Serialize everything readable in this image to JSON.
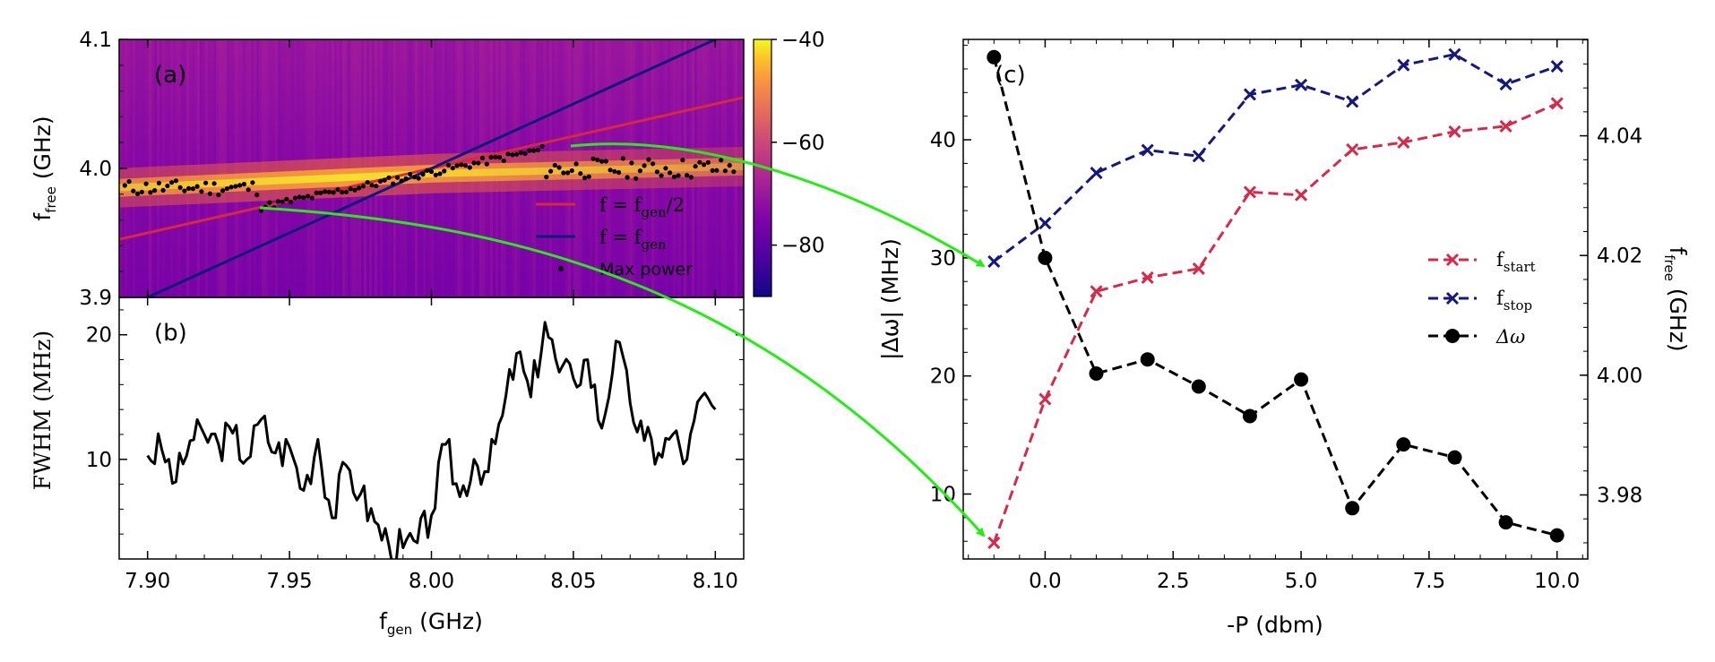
{
  "chart_data": [
    {
      "panel": "(a)",
      "type": "heatmap",
      "xlabel": "f_gen (GHz)",
      "ylabel": "f_free (GHz)",
      "xlim": [
        7.89,
        8.11
      ],
      "ylim": [
        3.9,
        4.1
      ],
      "yticks": [
        3.9,
        4.0,
        4.1
      ],
      "ytick_labels": [
        "3.9",
        "4.0",
        "4.1"
      ],
      "colorbar": {
        "ticks": [
          -40,
          -60,
          -80
        ],
        "tick_labels": [
          "−40",
          "−60",
          "−80"
        ],
        "range": [
          -90,
          -40
        ]
      },
      "series": [
        {
          "name": "f = f_gen/2",
          "color": "#d62a3c",
          "x": [
            7.89,
            8.11
          ],
          "y": [
            3.945,
            4.055
          ]
        },
        {
          "name": "f = f_gen",
          "color": "#0d1a7a",
          "x": [
            7.89,
            8.11
          ],
          "y": [
            3.89,
            4.11
          ]
        },
        {
          "name": "Max power",
          "color": "#000000",
          "type": "scatter"
        }
      ],
      "legend": [
        {
          "label": "f = f",
          "sub": "gen",
          "suffix": "/2"
        },
        {
          "label": "f = f",
          "sub": "gen",
          "suffix": ""
        },
        {
          "label": "Max power"
        }
      ]
    },
    {
      "panel": "(b)",
      "type": "line",
      "xlabel": "f_gen (GHz)",
      "ylabel": "FWHM (MHz)",
      "xlim": [
        7.89,
        8.11
      ],
      "ylim": [
        2,
        23
      ],
      "xticks": [
        7.9,
        7.95,
        8.0,
        8.05,
        8.1
      ],
      "xtick_labels": [
        "7.90",
        "7.95",
        "8.00",
        "8.05",
        "8.10"
      ],
      "yticks": [
        10,
        20
      ],
      "ytick_labels": [
        "10",
        "20"
      ],
      "series": [
        {
          "name": "FWHM",
          "x": [
            7.9,
            7.905,
            7.91,
            7.915,
            7.92,
            7.925,
            7.93,
            7.935,
            7.94,
            7.945,
            7.95,
            7.955,
            7.96,
            7.965,
            7.97,
            7.975,
            7.98,
            7.985,
            7.99,
            7.995,
            8.0,
            8.005,
            8.01,
            8.015,
            8.02,
            8.025,
            8.03,
            8.035,
            8.04,
            8.045,
            8.05,
            8.055,
            8.06,
            8.065,
            8.07,
            8.075,
            8.08,
            8.085,
            8.09,
            8.095,
            8.1
          ],
          "y": [
            10.3,
            10.8,
            8.2,
            11.5,
            12.0,
            11.2,
            12.1,
            10.0,
            13.2,
            10.5,
            11.0,
            7.5,
            11.6,
            5.3,
            9.5,
            7.2,
            5.0,
            3.1,
            2.9,
            3.3,
            5.5,
            11.2,
            7.0,
            10.0,
            9.0,
            13.5,
            18.5,
            15.0,
            21.0,
            17.0,
            16.5,
            18.0,
            12.5,
            19.5,
            14.5,
            11.5,
            10.5,
            12.0,
            10.0,
            15.0,
            14.0
          ]
        }
      ]
    },
    {
      "panel": "(c)",
      "type": "line",
      "xlabel": "-P (dbm)",
      "ylabel": "|Δω| (MHz)",
      "y2label": "f_free (GHz)",
      "xlim": [
        -1.6,
        10.6
      ],
      "ylim": [
        4.5,
        48.5
      ],
      "y2lim": [
        3.9693,
        4.0561
      ],
      "xticks": [
        0.0,
        2.5,
        5.0,
        7.5,
        10.0
      ],
      "xtick_labels": [
        "0.0",
        "2.5",
        "5.0",
        "7.5",
        "10.0"
      ],
      "yticks": [
        10,
        20,
        30,
        40
      ],
      "ytick_labels": [
        "10",
        "20",
        "30",
        "40"
      ],
      "y2ticks": [
        3.98,
        4.0,
        4.02,
        4.04
      ],
      "y2tick_labels": [
        "3.98",
        "4.00",
        "4.02",
        "4.04"
      ],
      "x": [
        -1,
        0,
        1,
        2,
        3,
        4,
        5,
        6,
        7,
        8,
        9,
        10
      ],
      "series": [
        {
          "name": "f_start",
          "axis": "right",
          "color": "#d62a4b",
          "marker": "x",
          "values": [
            3.972,
            3.996,
            4.014,
            4.0163,
            4.0178,
            4.0306,
            4.0301,
            4.0377,
            4.0389,
            4.0407,
            4.0416,
            4.0454
          ]
        },
        {
          "name": "f_stop",
          "axis": "right",
          "color": "#14197a",
          "marker": "x",
          "values": [
            4.019,
            4.0254,
            4.0338,
            4.0376,
            4.0366,
            4.0469,
            4.0485,
            4.0457,
            4.0518,
            4.0536,
            4.0486,
            4.0516
          ]
        },
        {
          "name": "Δω",
          "axis": "left",
          "color": "#000000",
          "marker": "o",
          "values": [
            47.0,
            30.0,
            20.2,
            21.4,
            19.1,
            16.6,
            19.7,
            8.8,
            14.2,
            13.1,
            7.6,
            6.5
          ]
        }
      ],
      "legend": [
        {
          "label": "f",
          "sub": "start"
        },
        {
          "label": "f",
          "sub": "stop"
        },
        {
          "label": "Δω"
        }
      ]
    }
  ],
  "axis_titles": {
    "a_y_main": "f",
    "a_y_sub": "free",
    "a_y_unit": " (GHz)",
    "b_y": "FWHM (MHz)",
    "b_x_main": "f",
    "b_x_sub": "gen",
    "b_x_unit": " (GHz)",
    "c_x": "-P (dbm)",
    "c_y": "|Δω| (MHz)",
    "c_y2_main": "f",
    "c_y2_sub": "free",
    "c_y2_unit": " (GHz)"
  },
  "arrow_color": "#22ee11"
}
